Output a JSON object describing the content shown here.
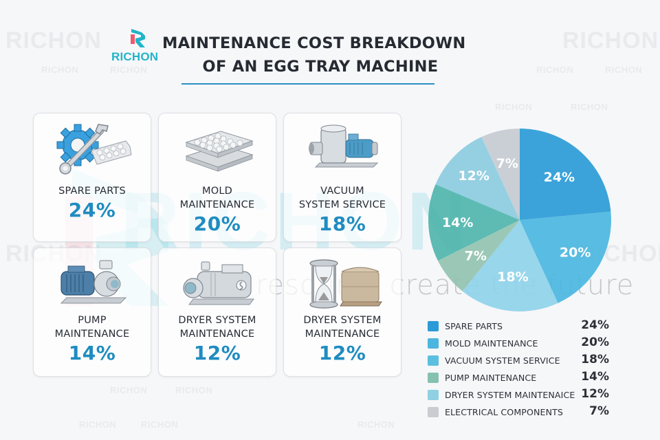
{
  "brand": {
    "logo_text": "RICHON",
    "colors": {
      "teal": "#21b4c8",
      "pink": "#ef5a6f",
      "accent_blue": "#1f8cc0",
      "rule": "#2a8fc4"
    }
  },
  "header": {
    "title_line1": "MAINTENANCE COST BREAKDOWN",
    "title_line2": "OF AN EGG TRAY MACHINE"
  },
  "watermark": {
    "brand": "RICHON",
    "slogan": "resource create the future"
  },
  "cards": [
    {
      "label_line1": "SPARE PARTS",
      "label_line2": "",
      "value": "24%",
      "icon": "gear-wrench-egg-tray-icon"
    },
    {
      "label_line1": "MOLD",
      "label_line2": "MAINTENANCE",
      "value": "20%",
      "icon": "stacked-egg-trays-icon"
    },
    {
      "label_line1": "VACUUM",
      "label_line2": "SYSTEM SERVICE",
      "value": "18%",
      "icon": "vacuum-pump-icon"
    },
    {
      "label_line1": "PUMP",
      "label_line2": "MAINTENANCE",
      "value": "14%",
      "icon": "water-pump-icon"
    },
    {
      "label_line1": "DRYER SYSTEM",
      "label_line2": "MAINTENANCE",
      "value": "12%",
      "icon": "dryer-motor-icon"
    },
    {
      "label_line1": "DRYER SYSTEM",
      "label_line2": "MAINTENANCE",
      "value": "12%",
      "icon": "hourglass-pallet-icon"
    }
  ],
  "legend": [
    {
      "label": "SPARE PARTS",
      "value": "24%",
      "color": "#2a9bd6"
    },
    {
      "label": "MOLD MAINTENANCE",
      "value": "20%",
      "color": "#4bb6df"
    },
    {
      "label": "VACUUM SYSTEM SERVICE",
      "value": "18%",
      "color": "#5bbfe0"
    },
    {
      "label": "PUMP MAINTENANCE",
      "value": "14%",
      "color": "#86c1b0"
    },
    {
      "label": "DRYER SYSTEM MAINTENAICE",
      "value": "12%",
      "color": "#8fd0e3"
    },
    {
      "label": "ELECTRICAL COMPONENTS",
      "value": "7%",
      "color": "#c9ccd1"
    }
  ],
  "chart_data": {
    "type": "pie",
    "title": "MAINTENANCE COST BREAKDOWN OF AN EGG TRAY MACHINE",
    "categories": [
      "Spare Parts",
      "Mold Maintenance",
      "Vacuum System Service",
      "(unlabeled green)",
      "Pump Maintenance",
      "Dryer System Maintenance",
      "Electrical Components"
    ],
    "values": [
      24,
      20,
      18,
      7,
      14,
      12,
      7
    ],
    "slice_labels": [
      "24%",
      "20%",
      "18%",
      "7%",
      "14%",
      "12%",
      "7%"
    ],
    "colors": [
      "#2a9bd6",
      "#4bb6df",
      "#8fd3ea",
      "#93c3b0",
      "#4fb5ad",
      "#8ccbe0",
      "#c6cbd3"
    ],
    "start_angle": "12 o'clock, clockwise",
    "legend_position": "bottom-right",
    "legend_entries": [
      {
        "label": "SPARE PARTS",
        "value": 24
      },
      {
        "label": "MOLD MAINTENANCE",
        "value": 20
      },
      {
        "label": "VACUUM SYSTEM SERVICE",
        "value": 18
      },
      {
        "label": "PUMP MAINTENANCE",
        "value": 14
      },
      {
        "label": "DRYER SYSTEM MAINTENAICE",
        "value": 12
      },
      {
        "label": "ELECTRICAL COMPONENTS",
        "value": 7
      }
    ]
  }
}
